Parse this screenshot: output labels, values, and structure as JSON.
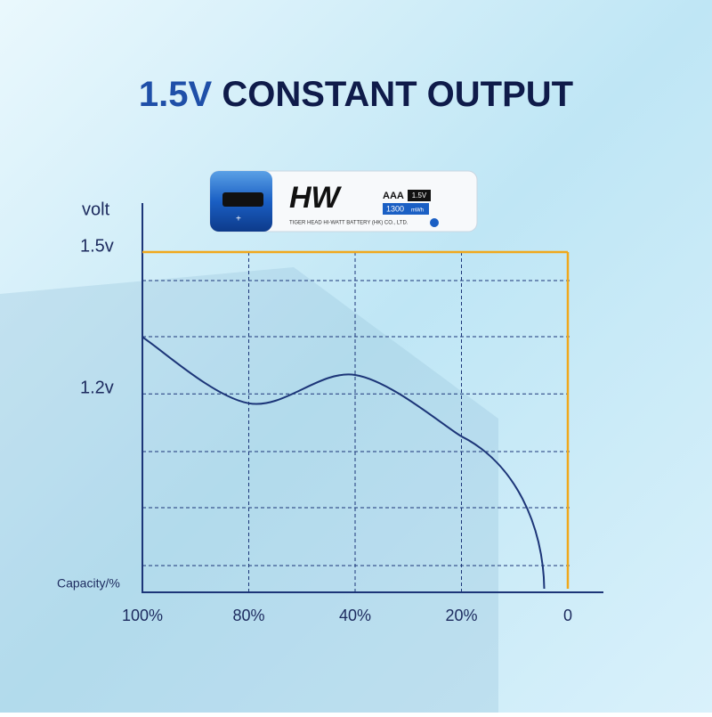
{
  "chart_data": {
    "type": "line",
    "title": [
      "1.5V",
      "CONSTANT OUTPUT"
    ],
    "y_label": "volt",
    "x_label": "Capacity/%",
    "categories": [
      "100%",
      "80%",
      "40%",
      "20%",
      "0"
    ],
    "ylim": [
      0.78,
      1.6
    ],
    "yticks": [
      {
        "value": 1.5,
        "label": "1.5v"
      },
      {
        "value": 1.2,
        "label": "1.2v"
      }
    ],
    "grid": true,
    "series": [
      {
        "color": "#f0a81c",
        "values": [
          1.5,
          1.5,
          1.5,
          1.5,
          1.5
        ]
      },
      {
        "color": "#1c3578",
        "values": [
          1.32,
          1.18,
          1.24,
          1.11,
          null
        ]
      }
    ]
  },
  "battery": {
    "brand": "HW",
    "size": "AAA",
    "voltage": "1.5V",
    "capacity": "1300",
    "unit": "mWh",
    "maker": "TIGER HEAD HI-WATT BATTERY (HK) CO., LTD."
  }
}
